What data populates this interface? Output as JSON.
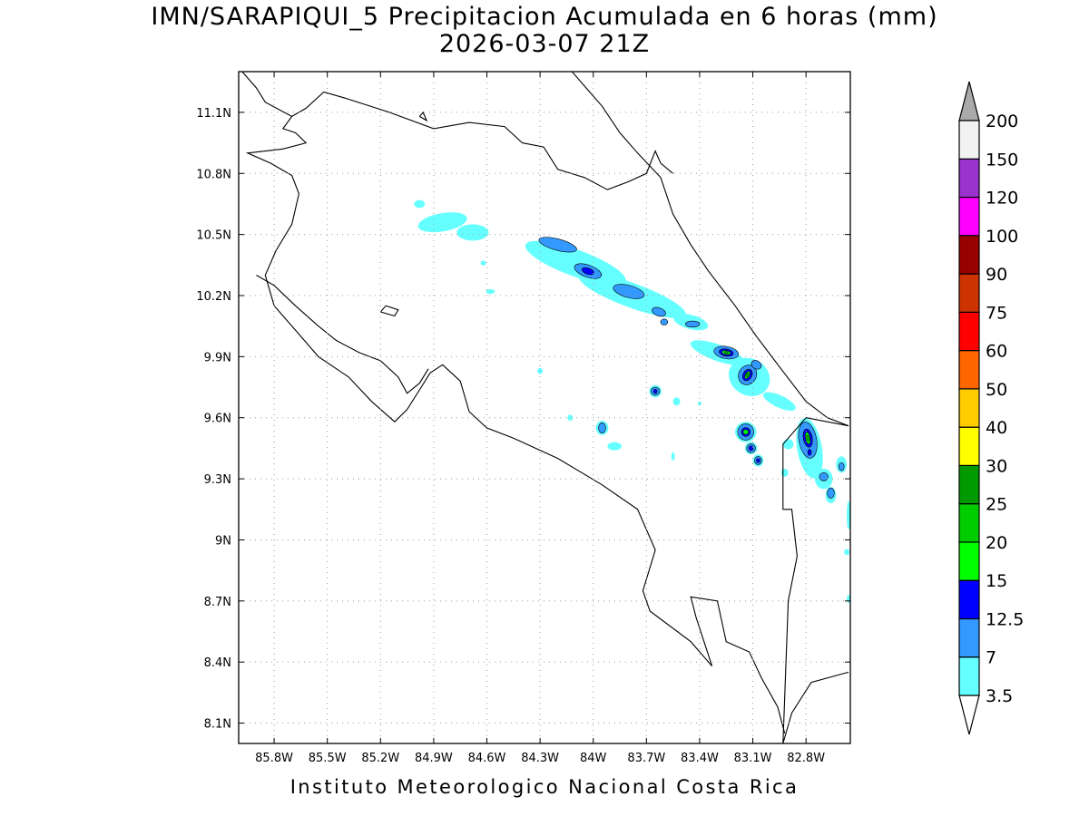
{
  "title": {
    "line1": "IMN/SARAPIQUI_5 Precipitacion Acumulada en 6 horas (mm)",
    "line2": "2026-03-07 21Z"
  },
  "credit": "Instituto Meteorologico Nacional Costa Rica",
  "map": {
    "lon_range": [
      -86.0,
      -82.55
    ],
    "lat_range": [
      8.0,
      11.3
    ],
    "lon_ticks": [
      {
        "value": -85.8,
        "label": "85.8W"
      },
      {
        "value": -85.5,
        "label": "85.5W"
      },
      {
        "value": -85.2,
        "label": "85.2W"
      },
      {
        "value": -84.9,
        "label": "84.9W"
      },
      {
        "value": -84.6,
        "label": "84.6W"
      },
      {
        "value": -84.3,
        "label": "84.3W"
      },
      {
        "value": -84.0,
        "label": "84W"
      },
      {
        "value": -83.7,
        "label": "83.7W"
      },
      {
        "value": -83.4,
        "label": "83.4W"
      },
      {
        "value": -83.1,
        "label": "83.1W"
      },
      {
        "value": -82.8,
        "label": "82.8W"
      }
    ],
    "lat_ticks": [
      {
        "value": 11.1,
        "label": "11.1N"
      },
      {
        "value": 10.8,
        "label": "10.8N"
      },
      {
        "value": 10.5,
        "label": "10.5N"
      },
      {
        "value": 10.2,
        "label": "10.2N"
      },
      {
        "value": 9.9,
        "label": "9.9N"
      },
      {
        "value": 9.6,
        "label": "9.6N"
      },
      {
        "value": 9.3,
        "label": "9.3N"
      },
      {
        "value": 9.0,
        "label": "9N"
      },
      {
        "value": 8.7,
        "label": "8.7N"
      },
      {
        "value": 8.4,
        "label": "8.4N"
      },
      {
        "value": 8.1,
        "label": "8.1N"
      }
    ],
    "grid": "dotted"
  },
  "colorbar": {
    "levels": [
      "3.5",
      "7",
      "12.5",
      "15",
      "20",
      "25",
      "30",
      "40",
      "50",
      "60",
      "75",
      "90",
      "100",
      "120",
      "150",
      "200"
    ],
    "colors": [
      "#ffffff",
      "#66ffff",
      "#3399ff",
      "#0000ff",
      "#00ff00",
      "#00cc00",
      "#009900",
      "#ffff00",
      "#ffcc00",
      "#ff6600",
      "#ff0000",
      "#cc3300",
      "#990000",
      "#ff00ff",
      "#9933cc",
      "#f2f2f2",
      "#aaaaaa"
    ]
  },
  "precip_cells": [
    {
      "lon": -84.85,
      "lat": 10.56,
      "rx": 0.14,
      "ry": 0.045,
      "rot": -10,
      "level": 1
    },
    {
      "lon": -84.68,
      "lat": 10.51,
      "rx": 0.09,
      "ry": 0.04,
      "rot": 0,
      "level": 1
    },
    {
      "lon": -84.98,
      "lat": 10.65,
      "rx": 0.03,
      "ry": 0.02,
      "rot": 0,
      "level": 1
    },
    {
      "lon": -84.58,
      "lat": 10.22,
      "rx": 0.025,
      "ry": 0.012,
      "rot": 0,
      "level": 1
    },
    {
      "lon": -84.62,
      "lat": 10.36,
      "rx": 0.015,
      "ry": 0.012,
      "rot": 0,
      "level": 1
    },
    {
      "lon": -84.1,
      "lat": 10.36,
      "rx": 0.3,
      "ry": 0.065,
      "rot": 20,
      "level": 1
    },
    {
      "lon": -83.78,
      "lat": 10.2,
      "rx": 0.32,
      "ry": 0.06,
      "rot": 20,
      "level": 1
    },
    {
      "lon": -83.45,
      "lat": 10.07,
      "rx": 0.1,
      "ry": 0.035,
      "rot": 15,
      "level": 1
    },
    {
      "lon": -83.3,
      "lat": 9.92,
      "rx": 0.16,
      "ry": 0.04,
      "rot": 20,
      "level": 1
    },
    {
      "lon": -83.12,
      "lat": 9.8,
      "rx": 0.12,
      "ry": 0.09,
      "rot": 30,
      "level": 1
    },
    {
      "lon": -82.95,
      "lat": 9.68,
      "rx": 0.1,
      "ry": 0.03,
      "rot": 25,
      "level": 1
    },
    {
      "lon": -83.14,
      "lat": 9.53,
      "rx": 0.06,
      "ry": 0.05,
      "rot": 0,
      "level": 1
    },
    {
      "lon": -83.11,
      "lat": 9.45,
      "rx": 0.035,
      "ry": 0.03,
      "rot": 0,
      "level": 1
    },
    {
      "lon": -83.07,
      "lat": 9.39,
      "rx": 0.03,
      "ry": 0.03,
      "rot": 0,
      "level": 1
    },
    {
      "lon": -82.78,
      "lat": 9.45,
      "rx": 0.07,
      "ry": 0.15,
      "rot": -10,
      "level": 1
    },
    {
      "lon": -82.7,
      "lat": 9.3,
      "rx": 0.05,
      "ry": 0.05,
      "rot": 0,
      "level": 1
    },
    {
      "lon": -82.66,
      "lat": 9.22,
      "rx": 0.03,
      "ry": 0.04,
      "rot": 0,
      "level": 1
    },
    {
      "lon": -82.6,
      "lat": 9.37,
      "rx": 0.03,
      "ry": 0.04,
      "rot": 0,
      "level": 1
    },
    {
      "lon": -82.9,
      "lat": 9.47,
      "rx": 0.03,
      "ry": 0.025,
      "rot": 0,
      "level": 1
    },
    {
      "lon": -82.92,
      "lat": 9.33,
      "rx": 0.02,
      "ry": 0.02,
      "rot": 0,
      "level": 1
    },
    {
      "lon": -82.56,
      "lat": 9.12,
      "rx": 0.01,
      "ry": 0.07,
      "rot": 0,
      "level": 1
    },
    {
      "lon": -83.65,
      "lat": 9.73,
      "rx": 0.035,
      "ry": 0.03,
      "rot": 0,
      "level": 1
    },
    {
      "lon": -83.53,
      "lat": 9.68,
      "rx": 0.02,
      "ry": 0.02,
      "rot": 0,
      "level": 1
    },
    {
      "lon": -83.95,
      "lat": 9.55,
      "rx": 0.035,
      "ry": 0.035,
      "rot": 0,
      "level": 1
    },
    {
      "lon": -83.88,
      "lat": 9.46,
      "rx": 0.04,
      "ry": 0.02,
      "rot": 0,
      "level": 1
    },
    {
      "lon": -84.13,
      "lat": 9.6,
      "rx": 0.015,
      "ry": 0.015,
      "rot": 0,
      "level": 1
    },
    {
      "lon": -84.3,
      "lat": 9.83,
      "rx": 0.015,
      "ry": 0.015,
      "rot": 0,
      "level": 1
    },
    {
      "lon": -83.55,
      "lat": 9.41,
      "rx": 0.01,
      "ry": 0.02,
      "rot": 0,
      "level": 1
    },
    {
      "lon": -83.4,
      "lat": 9.67,
      "rx": 0.01,
      "ry": 0.01,
      "rot": 0,
      "level": 1
    },
    {
      "lon": -82.57,
      "lat": 8.94,
      "rx": 0.015,
      "ry": 0.015,
      "rot": 0,
      "level": 1
    },
    {
      "lon": -82.56,
      "lat": 8.71,
      "rx": 0.01,
      "ry": 0.02,
      "rot": 0,
      "level": 1
    },
    {
      "lon": -84.2,
      "lat": 10.45,
      "rx": 0.11,
      "ry": 0.028,
      "rot": 15,
      "level": 2
    },
    {
      "lon": -84.03,
      "lat": 10.32,
      "rx": 0.08,
      "ry": 0.03,
      "rot": 20,
      "level": 2
    },
    {
      "lon": -83.8,
      "lat": 10.22,
      "rx": 0.09,
      "ry": 0.03,
      "rot": 15,
      "level": 2
    },
    {
      "lon": -83.63,
      "lat": 10.12,
      "rx": 0.04,
      "ry": 0.02,
      "rot": 20,
      "level": 2
    },
    {
      "lon": -83.44,
      "lat": 10.06,
      "rx": 0.04,
      "ry": 0.015,
      "rot": 0,
      "level": 2
    },
    {
      "lon": -83.6,
      "lat": 10.07,
      "rx": 0.02,
      "ry": 0.015,
      "rot": 0,
      "level": 2
    },
    {
      "lon": -83.25,
      "lat": 9.92,
      "rx": 0.07,
      "ry": 0.03,
      "rot": 10,
      "level": 2
    },
    {
      "lon": -83.13,
      "lat": 9.81,
      "rx": 0.05,
      "ry": 0.05,
      "rot": 30,
      "level": 2
    },
    {
      "lon": -83.08,
      "lat": 9.86,
      "rx": 0.03,
      "ry": 0.02,
      "rot": 30,
      "level": 2
    },
    {
      "lon": -83.14,
      "lat": 9.53,
      "rx": 0.045,
      "ry": 0.04,
      "rot": 0,
      "level": 2
    },
    {
      "lon": -83.11,
      "lat": 9.45,
      "rx": 0.025,
      "ry": 0.022,
      "rot": 0,
      "level": 2
    },
    {
      "lon": -83.07,
      "lat": 9.39,
      "rx": 0.02,
      "ry": 0.02,
      "rot": 0,
      "level": 2
    },
    {
      "lon": -82.79,
      "lat": 9.49,
      "rx": 0.05,
      "ry": 0.09,
      "rot": -10,
      "level": 2
    },
    {
      "lon": -82.7,
      "lat": 9.31,
      "rx": 0.025,
      "ry": 0.02,
      "rot": 0,
      "level": 2
    },
    {
      "lon": -82.66,
      "lat": 9.23,
      "rx": 0.02,
      "ry": 0.025,
      "rot": 0,
      "level": 2
    },
    {
      "lon": -83.65,
      "lat": 9.73,
      "rx": 0.025,
      "ry": 0.02,
      "rot": 0,
      "level": 2
    },
    {
      "lon": -83.95,
      "lat": 9.55,
      "rx": 0.02,
      "ry": 0.025,
      "rot": 0,
      "level": 2
    },
    {
      "lon": -82.6,
      "lat": 9.36,
      "rx": 0.015,
      "ry": 0.02,
      "rot": 0,
      "level": 2
    },
    {
      "lon": -84.03,
      "lat": 10.32,
      "rx": 0.035,
      "ry": 0.015,
      "rot": 20,
      "level": 3
    },
    {
      "lon": -83.25,
      "lat": 9.92,
      "rx": 0.04,
      "ry": 0.018,
      "rot": 10,
      "level": 3
    },
    {
      "lon": -83.13,
      "lat": 9.81,
      "rx": 0.025,
      "ry": 0.03,
      "rot": 30,
      "level": 3
    },
    {
      "lon": -83.14,
      "lat": 9.53,
      "rx": 0.025,
      "ry": 0.022,
      "rot": 0,
      "level": 3
    },
    {
      "lon": -82.79,
      "lat": 9.5,
      "rx": 0.025,
      "ry": 0.045,
      "rot": -10,
      "level": 3
    },
    {
      "lon": -83.11,
      "lat": 9.45,
      "rx": 0.012,
      "ry": 0.012,
      "rot": 0,
      "level": 3
    },
    {
      "lon": -83.07,
      "lat": 9.39,
      "rx": 0.01,
      "ry": 0.01,
      "rot": 0,
      "level": 3
    },
    {
      "lon": -83.65,
      "lat": 9.73,
      "rx": 0.01,
      "ry": 0.01,
      "rot": 0,
      "level": 3
    },
    {
      "lon": -82.78,
      "lat": 9.43,
      "rx": 0.01,
      "ry": 0.015,
      "rot": 0,
      "level": 3
    },
    {
      "lon": -83.25,
      "lat": 9.92,
      "rx": 0.025,
      "ry": 0.01,
      "rot": 10,
      "level": 4
    },
    {
      "lon": -83.13,
      "lat": 9.81,
      "rx": 0.012,
      "ry": 0.02,
      "rot": 30,
      "level": 4
    },
    {
      "lon": -83.14,
      "lat": 9.53,
      "rx": 0.015,
      "ry": 0.012,
      "rot": 0,
      "level": 4
    },
    {
      "lon": -82.79,
      "lat": 9.5,
      "rx": 0.013,
      "ry": 0.03,
      "rot": -10,
      "level": 4
    },
    {
      "lon": -83.13,
      "lat": 9.81,
      "rx": 0.006,
      "ry": 0.01,
      "rot": 30,
      "level": 5
    },
    {
      "lon": -82.79,
      "lat": 9.5,
      "rx": 0.006,
      "ry": 0.014,
      "rot": -10,
      "level": 5
    },
    {
      "lon": -83.25,
      "lat": 9.92,
      "rx": 0.01,
      "ry": 0.005,
      "rot": 10,
      "level": 5
    }
  ],
  "outlines": {
    "coast_caribbean": [
      [
        -84.12,
        11.3
      ],
      [
        -84.04,
        11.22
      ],
      [
        -83.95,
        11.13
      ],
      [
        -83.85,
        11.0
      ],
      [
        -83.75,
        10.9
      ],
      [
        -83.62,
        10.78
      ],
      [
        -83.55,
        10.6
      ],
      [
        -83.45,
        10.45
      ],
      [
        -83.35,
        10.32
      ],
      [
        -83.2,
        10.15
      ],
      [
        -83.08,
        10.0
      ],
      [
        -82.95,
        9.85
      ],
      [
        -82.8,
        9.68
      ],
      [
        -82.68,
        9.6
      ],
      [
        -82.56,
        9.56
      ]
    ],
    "border_nicaragua": [
      [
        -85.7,
        11.08
      ],
      [
        -85.62,
        11.12
      ],
      [
        -85.52,
        11.2
      ],
      [
        -85.4,
        11.17
      ],
      [
        -85.15,
        11.1
      ],
      [
        -84.9,
        11.02
      ],
      [
        -84.7,
        11.05
      ],
      [
        -84.5,
        11.03
      ],
      [
        -84.4,
        10.95
      ],
      [
        -84.28,
        10.93
      ],
      [
        -84.2,
        10.82
      ],
      [
        -84.05,
        10.78
      ],
      [
        -83.92,
        10.72
      ],
      [
        -83.8,
        10.76
      ],
      [
        -83.7,
        10.8
      ],
      [
        -83.65,
        10.91
      ],
      [
        -83.62,
        10.85
      ],
      [
        -83.55,
        10.8
      ]
    ],
    "pacific_coast": [
      [
        -85.98,
        11.3
      ],
      [
        -85.9,
        11.22
      ],
      [
        -85.85,
        11.15
      ],
      [
        -85.7,
        11.08
      ],
      [
        -85.75,
        11.02
      ],
      [
        -85.68,
        11.0
      ],
      [
        -85.62,
        10.95
      ],
      [
        -85.75,
        10.92
      ],
      [
        -85.95,
        10.9
      ],
      [
        -85.82,
        10.85
      ],
      [
        -85.7,
        10.79
      ],
      [
        -85.66,
        10.7
      ],
      [
        -85.7,
        10.55
      ],
      [
        -85.79,
        10.42
      ],
      [
        -85.85,
        10.3
      ],
      [
        -85.8,
        10.15
      ],
      [
        -85.65,
        10.0
      ],
      [
        -85.55,
        9.9
      ],
      [
        -85.38,
        9.8
      ],
      [
        -85.25,
        9.68
      ],
      [
        -85.12,
        9.58
      ],
      [
        -85.05,
        9.64
      ],
      [
        -84.97,
        9.75
      ],
      [
        -84.92,
        9.82
      ],
      [
        -84.85,
        9.86
      ],
      [
        -84.75,
        9.78
      ],
      [
        -84.7,
        9.63
      ],
      [
        -84.6,
        9.55
      ],
      [
        -84.45,
        9.5
      ],
      [
        -84.2,
        9.4
      ],
      [
        -83.95,
        9.27
      ],
      [
        -83.75,
        9.15
      ],
      [
        -83.65,
        8.95
      ],
      [
        -83.72,
        8.75
      ],
      [
        -83.68,
        8.65
      ],
      [
        -83.45,
        8.5
      ],
      [
        -83.33,
        8.38
      ],
      [
        -83.42,
        8.62
      ],
      [
        -83.45,
        8.72
      ],
      [
        -83.3,
        8.7
      ],
      [
        -83.25,
        8.5
      ],
      [
        -83.12,
        8.45
      ],
      [
        -83.05,
        8.32
      ],
      [
        -82.96,
        8.18
      ],
      [
        -82.92,
        8.05
      ]
    ],
    "nicoya_inner": [
      [
        -85.9,
        10.3
      ],
      [
        -85.8,
        10.25
      ],
      [
        -85.68,
        10.15
      ],
      [
        -85.55,
        10.05
      ],
      [
        -85.45,
        9.98
      ],
      [
        -85.32,
        9.92
      ],
      [
        -85.2,
        9.88
      ],
      [
        -85.1,
        9.8
      ],
      [
        -85.05,
        9.72
      ],
      [
        -84.98,
        9.77
      ],
      [
        -84.93,
        9.84
      ]
    ],
    "island_chira": [
      [
        -85.2,
        10.12
      ],
      [
        -85.12,
        10.1
      ],
      [
        -85.1,
        10.13
      ],
      [
        -85.17,
        10.15
      ],
      [
        -85.2,
        10.12
      ]
    ],
    "island_solentiname": [
      [
        -84.98,
        11.08
      ],
      [
        -84.96,
        11.1
      ],
      [
        -84.94,
        11.06
      ],
      [
        -84.98,
        11.08
      ]
    ],
    "border_panama": [
      [
        -82.56,
        8.35
      ],
      [
        -82.77,
        8.3
      ],
      [
        -82.88,
        8.15
      ],
      [
        -82.93,
        8.0
      ],
      [
        -82.9,
        8.7
      ],
      [
        -82.85,
        8.92
      ],
      [
        -82.88,
        9.15
      ],
      [
        -82.93,
        9.15
      ],
      [
        -82.93,
        9.47
      ],
      [
        -82.8,
        9.6
      ],
      [
        -82.56,
        9.56
      ]
    ]
  }
}
